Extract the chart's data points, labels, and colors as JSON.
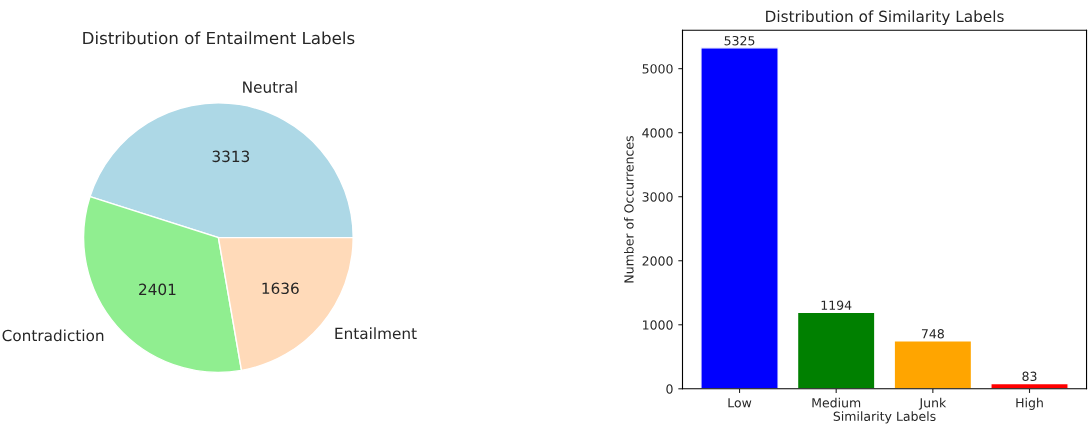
{
  "chart_data": [
    {
      "type": "pie",
      "title": "Distribution of Entailment Labels",
      "categories": [
        "Neutral",
        "Contradiction",
        "Entailment"
      ],
      "values": [
        3313,
        2401,
        1636
      ],
      "colors": [
        "#add8e6",
        "#90ee90",
        "#ffdab9"
      ],
      "data_labels": true
    },
    {
      "type": "bar",
      "title": "Distribution of Similarity Labels",
      "xlabel": "Similarity Labels",
      "ylabel": "Number of Occurrences",
      "categories": [
        "Low",
        "Medium",
        "Junk",
        "High"
      ],
      "values": [
        5325,
        1194,
        748,
        83
      ],
      "colors": [
        "#0000ff",
        "#008000",
        "#ffa500",
        "#ff0000"
      ],
      "ylim": [
        0,
        5600
      ],
      "yticks": [
        0,
        1000,
        2000,
        3000,
        4000,
        5000
      ],
      "data_labels": true
    }
  ]
}
